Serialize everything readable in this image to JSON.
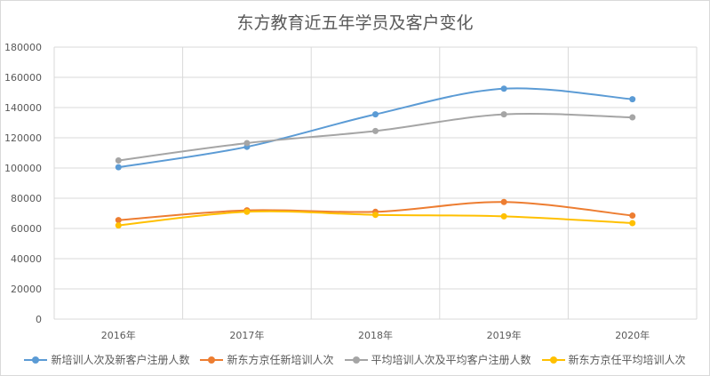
{
  "chart_data": {
    "type": "line",
    "title": "东方教育近五年学员及客户变化",
    "categories": [
      "2016年",
      "2017年",
      "2018年",
      "2019年",
      "2020年"
    ],
    "ylim": [
      0,
      180000
    ],
    "yticks": [
      "0",
      "20000",
      "40000",
      "60000",
      "80000",
      "100000",
      "120000",
      "140000",
      "160000",
      "180000"
    ],
    "grid": true,
    "legend_position": "bottom",
    "series": [
      {
        "name": "新培训人次及新客户注册人数",
        "color": "#5b9bd5",
        "values": [
          100500,
          114000,
          135500,
          152500,
          145500
        ]
      },
      {
        "name": "新东方京任新培训人次",
        "color": "#ed7d31",
        "values": [
          65500,
          72000,
          71000,
          77500,
          68500
        ]
      },
      {
        "name": "平均培训人次及平均客户注册人数",
        "color": "#a5a5a5",
        "values": [
          105000,
          116500,
          124500,
          135500,
          133500
        ]
      },
      {
        "name": "新东方京任平均培训人次",
        "color": "#ffc000",
        "values": [
          62000,
          71000,
          69000,
          68000,
          63500
        ]
      }
    ]
  }
}
